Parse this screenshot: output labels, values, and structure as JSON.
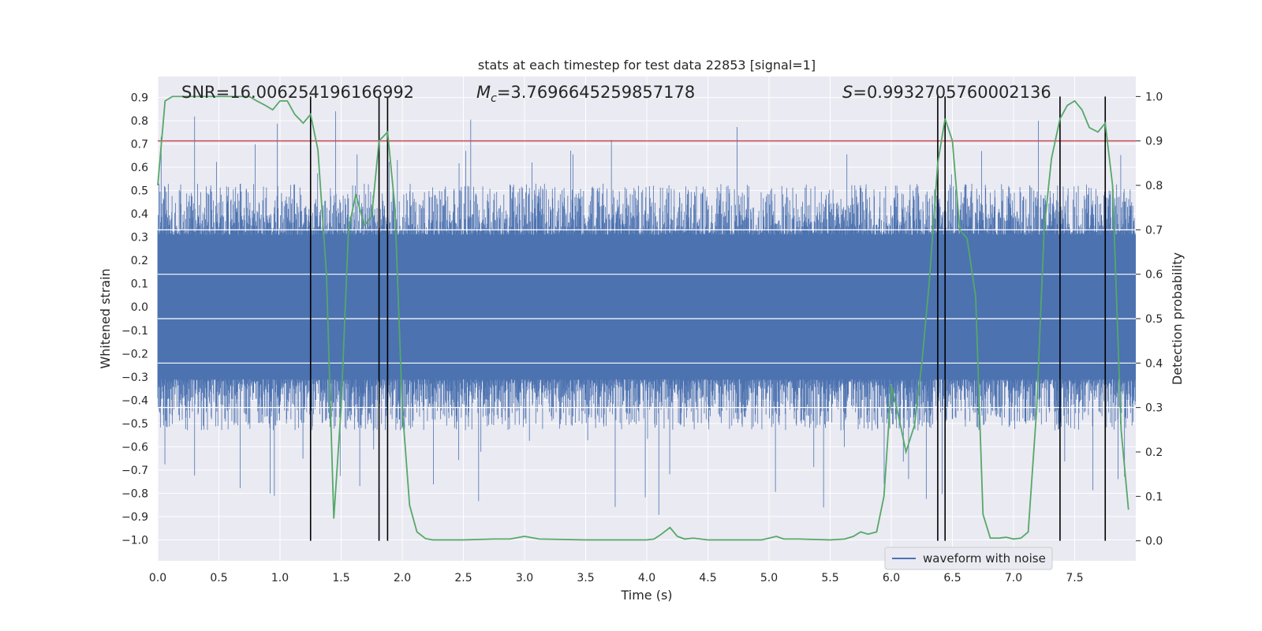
{
  "chart_data": {
    "type": "line",
    "title": "stats at each timestep for test data 22853 [signal=1]",
    "xlabel": "Time (s)",
    "ylabel": "Whitened strain",
    "y2label": "Detection probability",
    "xlim": [
      0,
      8.0
    ],
    "ylim": [
      -1.09,
      0.99
    ],
    "y2lim": [
      -0.045,
      1.045
    ],
    "x_ticks": [
      0.0,
      0.5,
      1.0,
      1.5,
      2.0,
      2.5,
      3.0,
      3.5,
      4.0,
      4.5,
      5.0,
      5.5,
      6.0,
      6.5,
      7.0,
      7.5
    ],
    "y_ticks": [
      0.9,
      0.8,
      0.7,
      0.6,
      0.5,
      0.4,
      0.3,
      0.2,
      0.1,
      0.0,
      -0.1,
      -0.2,
      -0.3,
      -0.4,
      -0.5,
      -0.6,
      -0.7,
      -0.8,
      -0.9,
      -1.0
    ],
    "y2_ticks": [
      1.0,
      0.9,
      0.8,
      0.7,
      0.6,
      0.5,
      0.4,
      0.3,
      0.2,
      0.1,
      0.0
    ],
    "x_tick_labels": [
      "0.0",
      "0.5",
      "1.0",
      "1.5",
      "2.0",
      "2.5",
      "3.0",
      "3.5",
      "4.0",
      "4.5",
      "5.0",
      "5.5",
      "6.0",
      "6.5",
      "7.0",
      "7.5"
    ],
    "y_tick_labels": [
      "0.9",
      "0.8",
      "0.7",
      "0.6",
      "0.5",
      "0.4",
      "0.3",
      "0.2",
      "0.1",
      "0.0",
      "−0.1",
      "−0.2",
      "−0.3",
      "−0.4",
      "−0.5",
      "−0.6",
      "−0.7",
      "−0.8",
      "−0.9",
      "−1.0"
    ],
    "y2_tick_labels": [
      "1.0",
      "0.9",
      "0.8",
      "0.7",
      "0.6",
      "0.5",
      "0.4",
      "0.3",
      "0.2",
      "0.1",
      "0.0"
    ],
    "annotations": {
      "snr": "SNR=16.006254196166992",
      "mc_symbol": "M",
      "mc_sub": "c",
      "mc_value": "=3.7696645259857178",
      "s_symbol": "S",
      "s_value": "=0.9932705760002136"
    },
    "threshold": {
      "y2": 0.9,
      "color": "#c44e52"
    },
    "event_lines_x": [
      1.25,
      1.81,
      1.88,
      6.38,
      6.44,
      7.38,
      7.75
    ],
    "waveform": {
      "name": "waveform with noise",
      "color": "#4c72b0",
      "core_amplitude": 0.31,
      "typical_peak": 0.45,
      "max_peak": 0.93,
      "min_trough": -1.0
    },
    "probability_series": {
      "name": "detection probability",
      "color": "#55a868",
      "x": [
        0.0,
        0.06,
        0.12,
        0.19,
        0.25,
        0.31,
        0.38,
        0.44,
        0.5,
        0.56,
        0.62,
        0.69,
        0.75,
        0.81,
        0.88,
        0.94,
        1.0,
        1.06,
        1.12,
        1.19,
        1.25,
        1.31,
        1.38,
        1.44,
        1.5,
        1.56,
        1.62,
        1.69,
        1.75,
        1.81,
        1.88,
        1.94,
        2.0,
        2.06,
        2.12,
        2.19,
        2.25,
        2.5,
        2.75,
        2.88,
        3.0,
        3.12,
        3.5,
        3.75,
        4.0,
        4.06,
        4.12,
        4.19,
        4.25,
        4.31,
        4.38,
        4.44,
        4.5,
        4.75,
        4.94,
        5.06,
        5.12,
        5.19,
        5.25,
        5.5,
        5.62,
        5.69,
        5.75,
        5.81,
        5.88,
        5.94,
        6.0,
        6.06,
        6.12,
        6.19,
        6.25,
        6.31,
        6.38,
        6.44,
        6.5,
        6.56,
        6.62,
        6.69,
        6.75,
        6.81,
        6.88,
        6.94,
        7.0,
        7.06,
        7.12,
        7.19,
        7.25,
        7.31,
        7.38,
        7.44,
        7.5,
        7.56,
        7.62,
        7.69,
        7.75,
        7.81,
        7.88,
        7.94
      ],
      "values": [
        0.8,
        0.99,
        1.0,
        1.0,
        1.0,
        1.0,
        1.0,
        1.0,
        1.0,
        1.0,
        1.0,
        1.0,
        1.0,
        0.99,
        0.98,
        0.97,
        0.99,
        0.99,
        0.96,
        0.94,
        0.96,
        0.88,
        0.6,
        0.05,
        0.3,
        0.7,
        0.78,
        0.71,
        0.73,
        0.9,
        0.92,
        0.75,
        0.3,
        0.08,
        0.02,
        0.005,
        0.002,
        0.002,
        0.004,
        0.004,
        0.01,
        0.004,
        0.002,
        0.002,
        0.002,
        0.004,
        0.015,
        0.03,
        0.01,
        0.004,
        0.006,
        0.004,
        0.002,
        0.002,
        0.002,
        0.01,
        0.004,
        0.004,
        0.004,
        0.002,
        0.004,
        0.01,
        0.02,
        0.015,
        0.02,
        0.1,
        0.35,
        0.28,
        0.2,
        0.26,
        0.4,
        0.58,
        0.85,
        0.95,
        0.9,
        0.7,
        0.68,
        0.55,
        0.06,
        0.006,
        0.006,
        0.008,
        0.004,
        0.006,
        0.02,
        0.3,
        0.7,
        0.86,
        0.95,
        0.98,
        0.99,
        0.97,
        0.93,
        0.92,
        0.94,
        0.8,
        0.25,
        0.07
      ]
    },
    "legend": {
      "entries": [
        "waveform with noise"
      ],
      "placement": "lower-right"
    }
  }
}
